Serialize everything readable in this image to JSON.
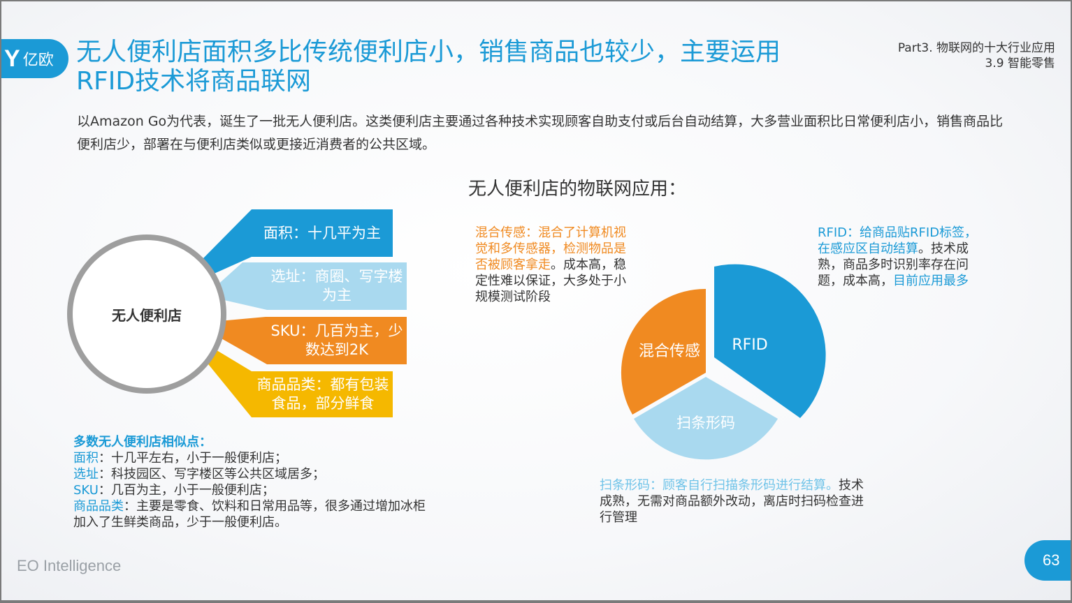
{
  "header": {
    "logo_mark": "Y",
    "logo_text": "亿欧",
    "title": "无人便利店面积多比传统便利店小，销售商品也较少，主要运用RFID技术将商品联网",
    "part_line1": "Part3. 物联网的十大行业应用",
    "part_line2": "3.9 智能零售"
  },
  "intro": "以Amazon Go为代表，诞生了一批无人便利店。这类便利店主要通过各种技术实现顾客自助支付或后台自动结算，大多营业面积比日常便利店小，销售商品比便利店少，部署在与便利店类似或更接近消费者的公共区域。",
  "hub": {
    "label": "无人便利店",
    "items": [
      {
        "label": "面积：十几平为主",
        "color": "#1b9ad6"
      },
      {
        "label": "选址：商圈、写字楼为主",
        "color": "#a9d9ef"
      },
      {
        "label": "SKU：几百为主，少数达到2K",
        "color": "#f08a21"
      },
      {
        "label": "商品品类：都有包装食品，部分鲜食",
        "color": "#f5b800"
      }
    ]
  },
  "similar": {
    "heading": "多数无人便利店相似点：",
    "rows": [
      {
        "key": "面积",
        "text": "：十几平左右，小于一般便利店；"
      },
      {
        "key": "选址",
        "text": "：科技园区、写字楼区等公共区域居多；"
      },
      {
        "key": "SKU",
        "text": "：几百为主，小于一般便利店；"
      },
      {
        "key": "商品品类",
        "text": "：主要是零食、饮料和日常用品等，很多通过增加冰柜加入了生鲜类商品，少于一般便利店。"
      }
    ]
  },
  "pie_heading": "无人便利店的物联网应用：",
  "pie": {
    "colors": {
      "rfid": "#1b9ad6",
      "mixed": "#f08a21",
      "barcode": "#a9d9ef"
    },
    "labels": {
      "rfid": "RFID",
      "mixed": "混合传感",
      "barcode": "扫条形码"
    }
  },
  "notes": {
    "mixed_hl": "混合传感：混合了计算机视觉和多传感器，检测物品是否被顾客拿走",
    "mixed_rest": "。成本高，稳定性难以保证，大多处于小规模测试阶段",
    "rfid_hl": "RFID：给商品贴RFID标签，在感应区自动结算",
    "rfid_mid": "。技术成熟，商品多时识别率存在问题，成本高，",
    "rfid_tail": "目前应用最多",
    "barcode_hl": "扫条形码：顾客自行扫描条形码进行结算。",
    "barcode_rest": "技术成熟，无需对商品额外改动，离店时扫码检查进行管理"
  },
  "footer": {
    "brand": "EO Intelligence",
    "page": "63"
  }
}
